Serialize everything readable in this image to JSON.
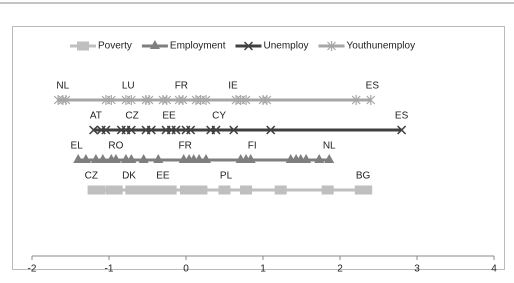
{
  "chart_data": {
    "type": "dotplot",
    "xlim": [
      -2,
      4
    ],
    "xticks": [
      -2,
      -1,
      0,
      1,
      2,
      3,
      4
    ],
    "legend": "top",
    "series": [
      {
        "name": "Poverty",
        "color": "#bfbfbf",
        "marker": "square",
        "values": [
          -1.2,
          -1.13,
          -0.97,
          -0.9,
          -0.71,
          -0.62,
          -0.52,
          -0.42,
          -0.3,
          -0.2,
          0.0,
          0.1,
          0.2,
          0.5,
          0.78,
          1.23,
          1.84,
          2.27,
          2.34
        ],
        "labels": [
          {
            "x": -1.23,
            "text": "CZ"
          },
          {
            "x": -0.74,
            "text": "DK"
          },
          {
            "x": -0.3,
            "text": "EE"
          },
          {
            "x": 0.52,
            "text": "PL"
          },
          {
            "x": 2.3,
            "text": "BG"
          }
        ]
      },
      {
        "name": "Employment",
        "color": "#7f7f7f",
        "marker": "triangle",
        "values": [
          -1.4,
          -1.3,
          -1.17,
          -1.08,
          -0.97,
          -0.91,
          -0.78,
          -0.71,
          -0.55,
          -0.36,
          -0.03,
          0.04,
          0.1,
          0.17,
          0.26,
          0.71,
          0.78,
          0.84,
          1.36,
          1.43,
          1.49,
          1.56,
          1.73,
          1.86
        ],
        "labels": [
          {
            "x": -1.42,
            "text": "EL"
          },
          {
            "x": -0.91,
            "text": "RO"
          },
          {
            "x": -0.01,
            "text": "FR"
          },
          {
            "x": 0.86,
            "text": "FI"
          },
          {
            "x": 1.86,
            "text": "NL"
          }
        ]
      },
      {
        "name": "Unemploy",
        "color": "#404040",
        "marker": "x",
        "values": [
          -1.2,
          -1.1,
          -1.04,
          -0.84,
          -0.78,
          -0.71,
          -0.52,
          -0.45,
          -0.26,
          -0.19,
          -0.13,
          0.0,
          0.06,
          0.32,
          0.39,
          0.62,
          1.1,
          2.8
        ],
        "labels": [
          {
            "x": -1.17,
            "text": "AT"
          },
          {
            "x": -0.7,
            "text": "CZ"
          },
          {
            "x": -0.22,
            "text": "EE"
          },
          {
            "x": 0.43,
            "text": "CY"
          },
          {
            "x": 2.8,
            "text": "ES"
          }
        ]
      },
      {
        "name": "Youthunemploy",
        "color": "#a6a6a6",
        "marker": "star",
        "values": [
          -1.66,
          -1.6,
          -1.56,
          -1.04,
          -0.97,
          -0.78,
          -0.71,
          -0.52,
          -0.48,
          -0.3,
          -0.25,
          -0.09,
          -0.04,
          0.13,
          0.19,
          0.26,
          0.65,
          0.71,
          0.78,
          1.0,
          1.05,
          2.21,
          2.4
        ],
        "labels": [
          {
            "x": -1.6,
            "text": "NL"
          },
          {
            "x": -0.75,
            "text": "LU"
          },
          {
            "x": -0.06,
            "text": "FR"
          },
          {
            "x": 0.61,
            "text": "IE"
          },
          {
            "x": 2.42,
            "text": "ES"
          }
        ]
      }
    ]
  }
}
